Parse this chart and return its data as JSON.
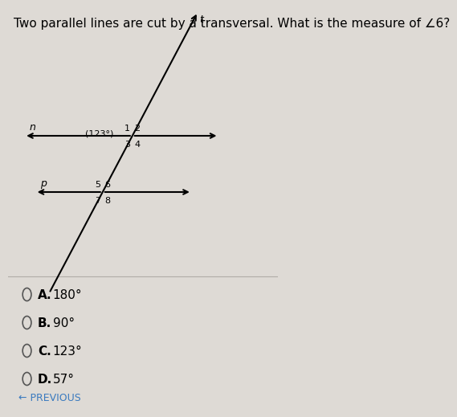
{
  "title": "Two parallel lines are cut by a transversal. What is the measure of ∠6?",
  "title_fontsize": 11,
  "bg_color": "#dedad5",
  "line_color": "#000000",
  "text_color": "#000000",
  "choices": [
    {
      "letter": "A.",
      "value": "180°"
    },
    {
      "letter": "B.",
      "value": "90°"
    },
    {
      "letter": "C.",
      "value": "123°"
    },
    {
      "letter": "D.",
      "value": "57°"
    }
  ],
  "angle_label": "(123°)",
  "line_n_label": "n",
  "line_p_label": "p",
  "transversal_label": "t",
  "angle_numbers_top": [
    "1",
    "2",
    "3",
    "4"
  ],
  "angle_numbers_bot": [
    "5",
    "6",
    "7",
    "8"
  ],
  "ix1": 0.46,
  "iy1": 0.68,
  "ix2": 0.35,
  "iy2": 0.54,
  "prev_text": "← PREVIOUS",
  "prev_color": "#3a7abf"
}
